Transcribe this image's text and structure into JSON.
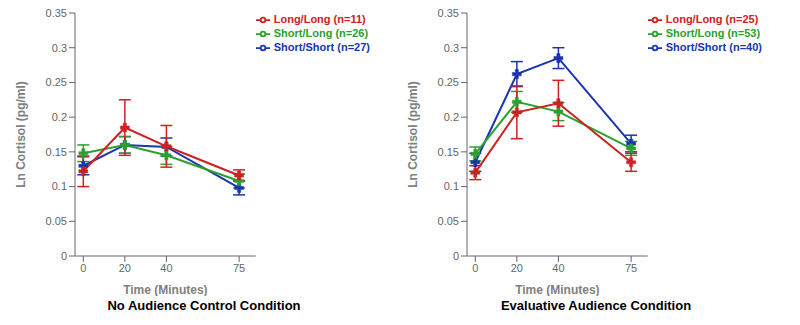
{
  "chart_data": [
    {
      "type": "line",
      "title": "No Audience Control Condition",
      "x_label": "Time (Minutes)",
      "y_label": "Ln Cortisol (pg/ml)",
      "x": [
        0,
        20,
        40,
        75
      ],
      "xlim": [
        -4,
        83
      ],
      "xticks": [
        0,
        20,
        40,
        75
      ],
      "ylim": [
        0,
        0.35
      ],
      "yticks": [
        0,
        0.05,
        0.1,
        0.15,
        0.2,
        0.25,
        0.3,
        0.35
      ],
      "grid": false,
      "legend": "upper right",
      "marker": "plus",
      "series": [
        {
          "name": "Short/Short (n=27)",
          "color": "#1a35b0",
          "values": [
            0.13,
            0.16,
            0.157,
            0.098
          ],
          "yerr": [
            0.013,
            0.012,
            0.013,
            0.01
          ]
        },
        {
          "name": "Short/Long (n=26)",
          "color": "#2ca02c",
          "values": [
            0.148,
            0.16,
            0.145,
            0.108
          ],
          "yerr": [
            0.012,
            0.012,
            0.013,
            0.01
          ]
        },
        {
          "name": "Long/Long (n=11)",
          "color": "#cc2222",
          "values": [
            0.122,
            0.185,
            0.158,
            0.116
          ],
          "yerr": [
            0.022,
            0.04,
            0.03,
            0.008
          ]
        }
      ]
    },
    {
      "type": "line",
      "title": "Evaluative Audience Condition",
      "x_label": "Time (Minutes)",
      "y_label": "Ln Cortisol (pg/ml)",
      "x": [
        0,
        20,
        40,
        75
      ],
      "xlim": [
        -4,
        83
      ],
      "xticks": [
        0,
        20,
        40,
        75
      ],
      "ylim": [
        0,
        0.35
      ],
      "yticks": [
        0,
        0.05,
        0.1,
        0.15,
        0.2,
        0.25,
        0.3,
        0.35
      ],
      "grid": false,
      "legend": "upper right",
      "marker": "plus",
      "series": [
        {
          "name": "Short/Short (n=40)",
          "color": "#1a35b0",
          "values": [
            0.135,
            0.262,
            0.285,
            0.162
          ],
          "yerr": [
            0.013,
            0.018,
            0.015,
            0.012
          ]
        },
        {
          "name": "Short/Long (n=53)",
          "color": "#2ca02c",
          "values": [
            0.147,
            0.222,
            0.208,
            0.155
          ],
          "yerr": [
            0.01,
            0.015,
            0.013,
            0.01
          ]
        },
        {
          "name": "Long/Long (n=25)",
          "color": "#cc2222",
          "values": [
            0.12,
            0.207,
            0.22,
            0.135
          ],
          "yerr": [
            0.01,
            0.038,
            0.033,
            0.013
          ]
        }
      ]
    }
  ]
}
